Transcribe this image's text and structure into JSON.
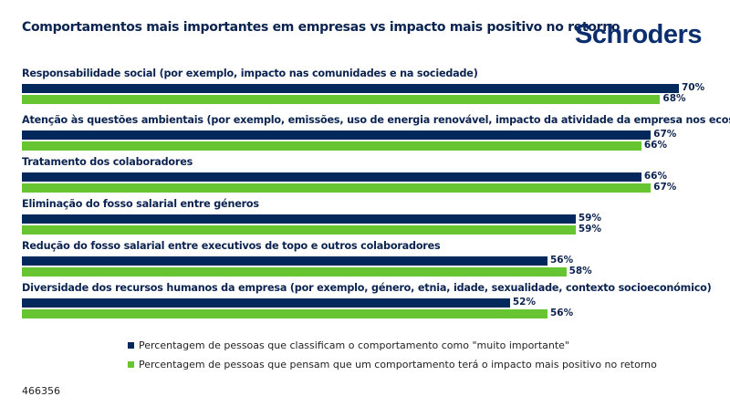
{
  "title": "Comportamentos mais importantes em empresas vs impacto mais positivo no retorno",
  "logo": "Schroders",
  "footer": "466356",
  "colors": {
    "series1": "#03285c",
    "series2": "#66c531"
  },
  "chart_data": {
    "type": "bar",
    "orientation": "horizontal",
    "categories": [
      "Responsabilidade social (por exemplo, impacto nas comunidades e na sociedade)",
      "Atenção às questões ambientais (por exemplo, emissões, uso de energia renovável, impacto da atividade da empresa nos ecossistemas)",
      "Tratamento dos colaboradores",
      "Eliminação do fosso salarial entre géneros",
      "Redução do fosso salarial entre executivos de topo e outros colaboradores",
      "Diversidade dos recursos humanos da empresa (por exemplo, género, etnia, idade, sexualidade, contexto socioeconómico)"
    ],
    "series": [
      {
        "name": "Percentagem de pessoas que classificam o comportamento como \"muito importante\"",
        "values": [
          70,
          67,
          66,
          59,
          56,
          52
        ],
        "labels": [
          "70%",
          "67%",
          "66%",
          "59%",
          "56%",
          "52%"
        ]
      },
      {
        "name": "Percentagem de pessoas que pensam que um comportamento terá o impacto mais positivo no retorno",
        "values": [
          68,
          66,
          67,
          59,
          58,
          56
        ],
        "labels": [
          "68%",
          "66%",
          "67%",
          "59%",
          "58%",
          "56%"
        ]
      }
    ],
    "unit": "%",
    "xlim": [
      0,
      70
    ],
    "grid": false,
    "legend_position": "bottom"
  }
}
